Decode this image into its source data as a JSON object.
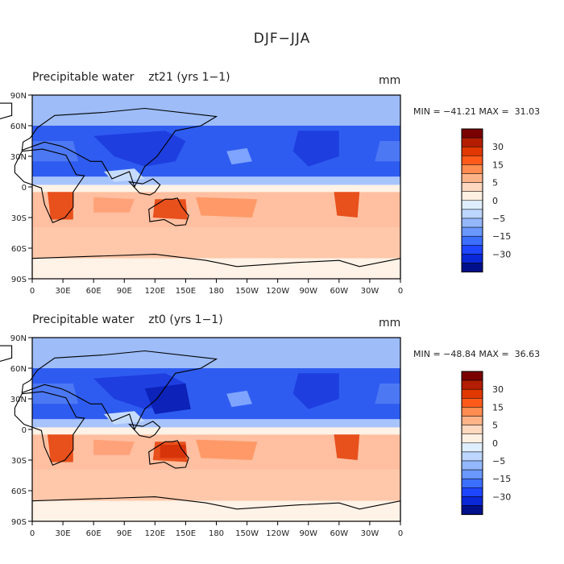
{
  "title": "DJF−JJA",
  "panels": [
    {
      "title": "Precipitable water    zt21 (yrs 1−1)",
      "unit": "mm",
      "min_max": "MIN = −41.21 MAX =  31.03"
    },
    {
      "title": "Precipitable water    zt0 (yrs 1−1)",
      "unit": "mm",
      "min_max": "MIN = −48.84 MAX =  36.63"
    }
  ],
  "lat_labels": [
    "90N",
    "60N",
    "30N",
    "0",
    "30S",
    "60S",
    "90S"
  ],
  "lon_labels": [
    "0",
    "30E",
    "60E",
    "90E",
    "120E",
    "150E",
    "180",
    "150W",
    "120W",
    "90W",
    "60W",
    "30W",
    "0"
  ],
  "colorbar": {
    "labels": [
      "30",
      "15",
      "5",
      "0",
      "−5",
      "−15",
      "−30"
    ],
    "colors": [
      "#7a0000",
      "#b31e00",
      "#e03800",
      "#ff5a1a",
      "#ff8c50",
      "#ffb488",
      "#ffd8c0",
      "#fff0e4",
      "#dfeeff",
      "#bcd6ff",
      "#94b8ff",
      "#6a98ff",
      "#3c6eff",
      "#1e46ff",
      "#0a28d8",
      "#00108a"
    ]
  },
  "colors": {
    "positive_strong": "#e8501c",
    "positive_light": "#ffc8aa",
    "neutral": "#fff2e6",
    "negative_light": "#a8c4ff",
    "negative_strong": "#2f5cf0"
  }
}
